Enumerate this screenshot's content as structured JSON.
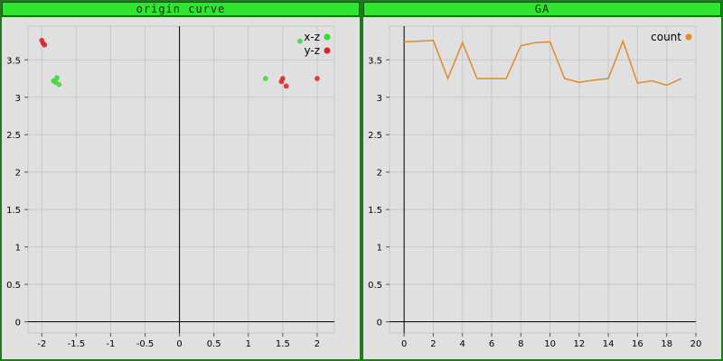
{
  "panels": [
    {
      "title": "origin curve"
    },
    {
      "title": "GA"
    }
  ],
  "chart_data": [
    {
      "type": "scatter",
      "title": "origin curve",
      "xlim": [
        -2.2,
        2.25
      ],
      "ylim": [
        -0.15,
        3.95
      ],
      "x_ticks": [
        -2,
        -1.5,
        -1,
        -0.5,
        0,
        0.5,
        1,
        1.5,
        2
      ],
      "x_tick_labels": [
        "-2",
        "-1.5",
        "-1",
        "-0.5",
        "0",
        "0.5",
        "1",
        "1.5",
        "2"
      ],
      "y_ticks": [
        0,
        0.5,
        1,
        1.5,
        2,
        2.5,
        3,
        3.5
      ],
      "y_tick_labels": [
        "0",
        "0.5",
        "1",
        "1.5",
        "2",
        "2.5",
        "3",
        "3.5"
      ],
      "grid": true,
      "legend_position": "top-right",
      "series": [
        {
          "name": "x-z",
          "color": "#33dd33",
          "points": [
            [
              -1.78,
              3.26
            ],
            [
              -1.8,
              3.2
            ],
            [
              -1.75,
              3.17
            ],
            [
              -1.83,
              3.22
            ],
            [
              1.25,
              3.25
            ],
            [
              1.75,
              3.75
            ]
          ]
        },
        {
          "name": "y-z",
          "color": "#dd2222",
          "points": [
            [
              -2.0,
              3.76
            ],
            [
              -1.98,
              3.72
            ],
            [
              -1.96,
              3.7
            ],
            [
              1.5,
              3.25
            ],
            [
              1.48,
              3.21
            ],
            [
              1.55,
              3.15
            ],
            [
              2.0,
              3.25
            ]
          ]
        }
      ]
    },
    {
      "type": "line",
      "title": "GA",
      "xlim": [
        -1,
        20
      ],
      "ylim": [
        -0.15,
        3.95
      ],
      "x_ticks": [
        0,
        2,
        4,
        6,
        8,
        10,
        12,
        14,
        16,
        18,
        20
      ],
      "x_tick_labels": [
        "0",
        "2",
        "4",
        "6",
        "8",
        "10",
        "12",
        "14",
        "16",
        "18",
        "20"
      ],
      "y_ticks": [
        0,
        0.5,
        1,
        1.5,
        2,
        2.5,
        3,
        3.5
      ],
      "y_tick_labels": [
        "0",
        "0.5",
        "1",
        "1.5",
        "2",
        "2.5",
        "3",
        "3.5"
      ],
      "grid": true,
      "legend_position": "top-right",
      "series": [
        {
          "name": "count",
          "color": "#e08a2a",
          "x": [
            0,
            1,
            2,
            3,
            4,
            5,
            6,
            7,
            8,
            9,
            10,
            11,
            12,
            13,
            14,
            15,
            16,
            17,
            18,
            19
          ],
          "y": [
            3.74,
            3.75,
            3.76,
            3.25,
            3.73,
            3.25,
            3.25,
            3.25,
            3.69,
            3.73,
            3.74,
            3.25,
            3.2,
            3.23,
            3.25,
            3.75,
            3.19,
            3.22,
            3.16,
            3.25
          ]
        }
      ]
    }
  ]
}
